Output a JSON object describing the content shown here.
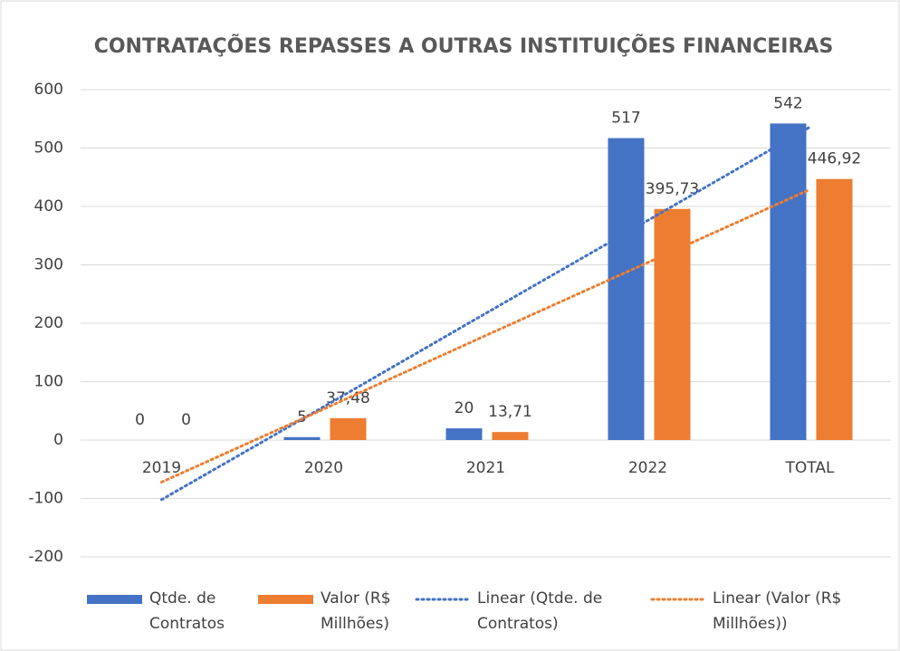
{
  "chart_data": {
    "type": "bar",
    "title": "CONTRATAÇÕES REPASSES A OUTRAS INSTITUIÇÕES FINANCEIRAS",
    "categories": [
      "2019",
      "2020",
      "2021",
      "2022",
      "TOTAL"
    ],
    "series": [
      {
        "name": "Qtde. de Contratos",
        "color": "#4472c4",
        "values": [
          0,
          5,
          20,
          517,
          542
        ]
      },
      {
        "name": "Valor (R$ Millhões)",
        "color": "#ed7d31",
        "values": [
          0,
          37.48,
          13.71,
          395.73,
          446.92
        ],
        "value_labels": [
          "0",
          "37,48",
          "13,71",
          "395,73",
          "446,92"
        ]
      }
    ],
    "trendlines": [
      {
        "name": "Linear (Qtde. de Contratos)",
        "color": "#4472c4",
        "values": [
          -102,
          57,
          217,
          376,
          536
        ]
      },
      {
        "name": "Linear (Valor (R$ Millhões))",
        "color": "#ed7d31",
        "values": [
          -72,
          53,
          179,
          304,
          429
        ]
      }
    ],
    "ylim": [
      -200,
      600
    ],
    "yticks": [
      -200,
      -100,
      0,
      100,
      200,
      300,
      400,
      500,
      600
    ],
    "grid": true,
    "legend": "bottom"
  }
}
